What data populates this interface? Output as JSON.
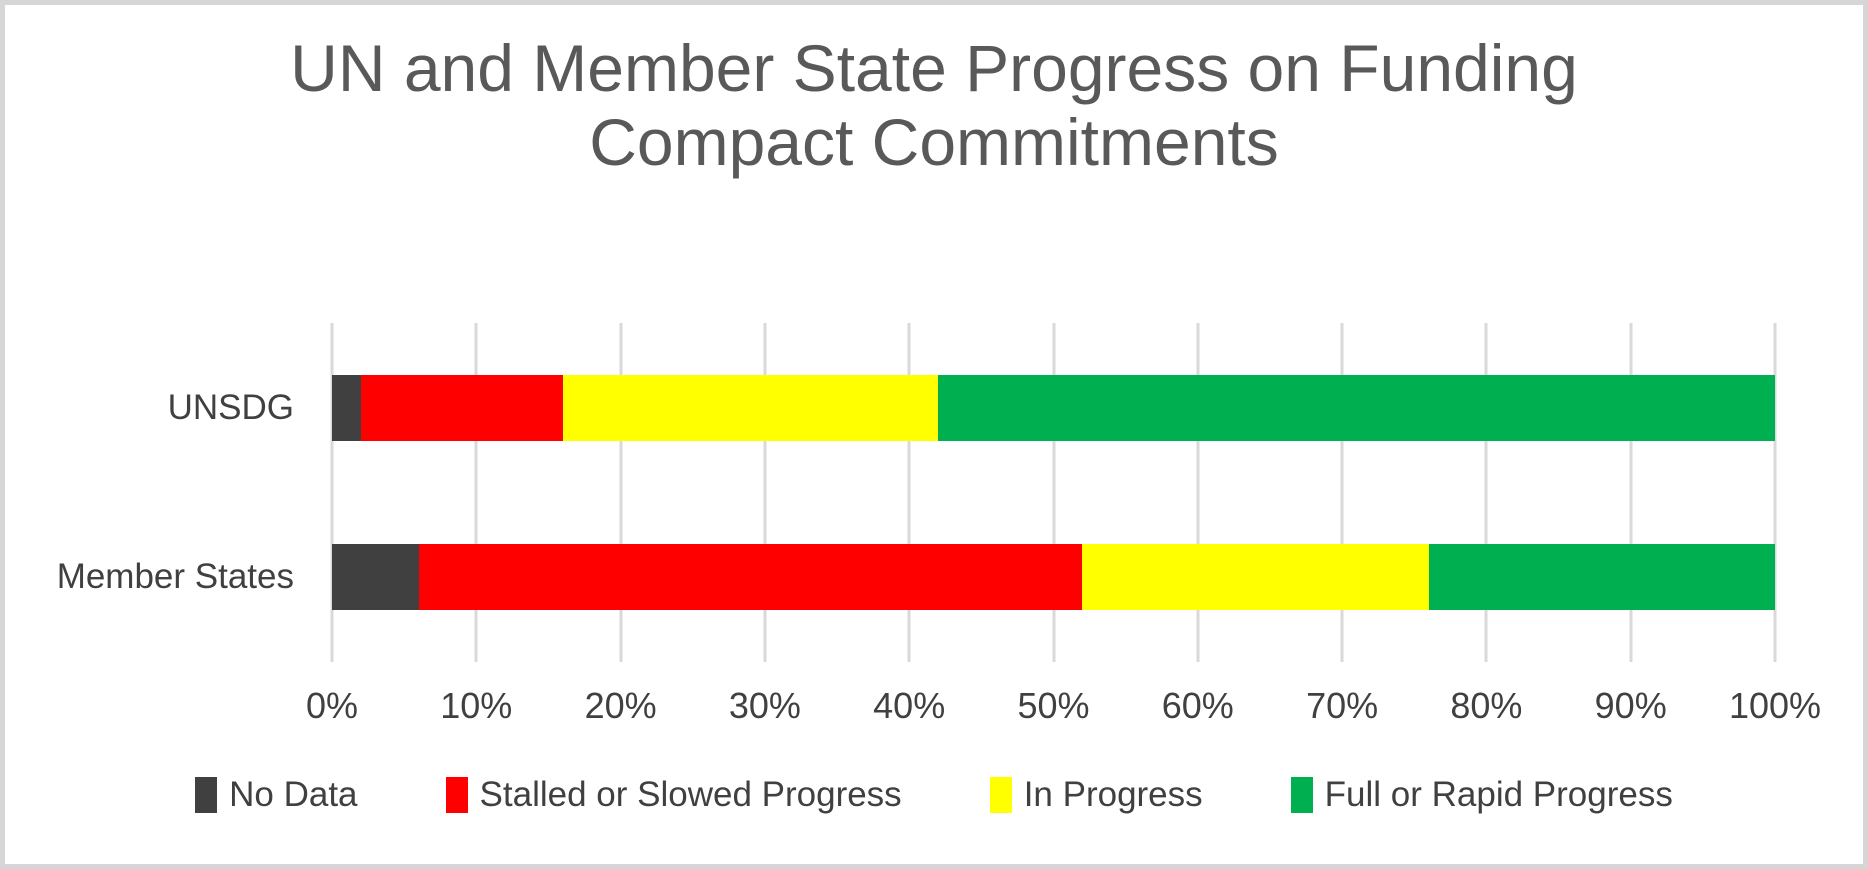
{
  "window": {
    "background": "#ffffff",
    "border_color": "#d6d6d6"
  },
  "chart_data": {
    "type": "bar",
    "orientation": "horizontal",
    "stacked": true,
    "title": "UN and Member State Progress on Funding Compact Commitments",
    "title_lines": [
      "UN and Member State Progress on Funding",
      "Compact Commitments"
    ],
    "title_color": "#595959",
    "text_color": "#404040",
    "categories": [
      "UNSDG",
      "Member States"
    ],
    "series": [
      {
        "name": "No Data",
        "color": "#404040",
        "values": [
          2,
          6
        ]
      },
      {
        "name": "Stalled or Slowed Progress",
        "color": "#ff0000",
        "values": [
          14,
          46
        ]
      },
      {
        "name": "In Progress",
        "color": "#ffff00",
        "values": [
          26,
          24
        ]
      },
      {
        "name": "Full or Rapid Progress",
        "color": "#00b050",
        "values": [
          58,
          24
        ]
      }
    ],
    "x_axis": {
      "min": 0,
      "max": 100,
      "tick_step": 10,
      "unit": "%",
      "tick_labels": [
        "0%",
        "10%",
        "20%",
        "30%",
        "40%",
        "50%",
        "60%",
        "70%",
        "80%",
        "90%",
        "100%"
      ]
    },
    "grid": true,
    "gridline_color": "#d9d9d9",
    "legend_position": "bottom"
  }
}
